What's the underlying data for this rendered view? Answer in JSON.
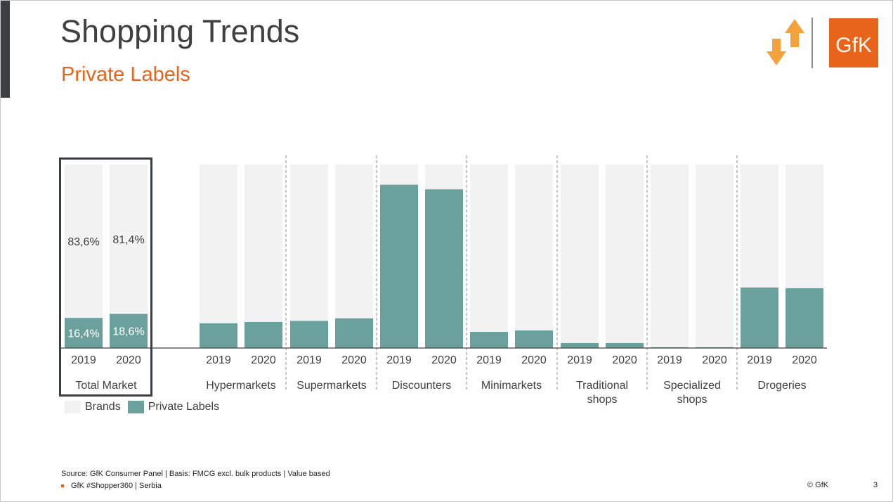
{
  "header": {
    "title": "Shopping Trends",
    "subtitle": "Private Labels",
    "logo_text": "GfK"
  },
  "colors": {
    "brands": "#f2f2f2",
    "private_labels": "#6ba19d",
    "accent": "#e8641b",
    "arrow": "#f4a23b",
    "title": "#404040"
  },
  "chart_data": {
    "type": "bar",
    "stacked": true,
    "ylim": [
      0,
      100
    ],
    "groups": [
      {
        "name": "Total Market",
        "years": [
          "2019",
          "2020"
        ],
        "private_labels": [
          16.4,
          18.6
        ],
        "brands": [
          83.6,
          81.4
        ],
        "labels_private": [
          "16,4%",
          "18,6%"
        ],
        "labels_brands": [
          "83,6%",
          "81,4%"
        ]
      },
      {
        "name": "Hypermarkets",
        "years": [
          "2019",
          "2020"
        ],
        "private_labels": [
          13.5,
          14.2
        ]
      },
      {
        "name": "Supermarkets",
        "years": [
          "2019",
          "2020"
        ],
        "private_labels": [
          14.8,
          16.2
        ]
      },
      {
        "name": "Discounters",
        "years": [
          "2019",
          "2020"
        ],
        "private_labels": [
          89.0,
          86.5
        ]
      },
      {
        "name": "Minimarkets",
        "years": [
          "2019",
          "2020"
        ],
        "private_labels": [
          8.8,
          9.6
        ]
      },
      {
        "name": "Traditional shops",
        "name_lines": [
          "Traditional",
          "shops"
        ],
        "years": [
          "2019",
          "2020"
        ],
        "private_labels": [
          2.7,
          2.7
        ]
      },
      {
        "name": "Specialized shops",
        "name_lines": [
          "Specialized",
          "shops"
        ],
        "years": [
          "2019",
          "2020"
        ],
        "private_labels": [
          0.4,
          0.4
        ]
      },
      {
        "name": "Drogeries",
        "years": [
          "2019",
          "2020"
        ],
        "private_labels": [
          33.0,
          32.6
        ]
      }
    ],
    "legend": [
      {
        "name": "Brands",
        "color": "#f2f2f2"
      },
      {
        "name": "Private Labels",
        "color": "#6ba19d"
      }
    ]
  },
  "footer": {
    "source": "Source: GfK Consumer Panel | Basis: FMCG excl. bulk products | Value based",
    "hashtag": "GfK #Shopper360 | Serbia",
    "copyright": "© GfK",
    "page_number": "3"
  }
}
